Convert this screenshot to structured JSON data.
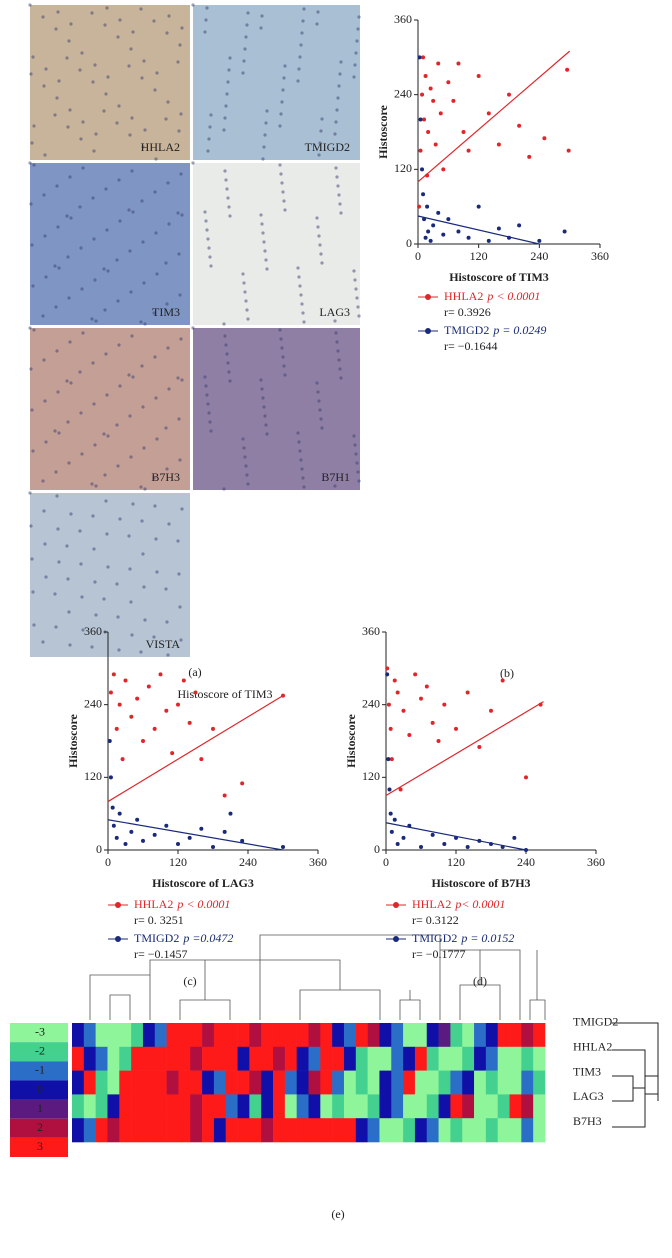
{
  "panel_a": {
    "label": "(a)",
    "images": [
      {
        "label": "HHLA2",
        "color": "#c8b49a"
      },
      {
        "label": "TMIGD2",
        "color": "#a9bfd3"
      },
      {
        "label": "TIM3",
        "color": "#7f95c4"
      },
      {
        "label": "LAG3",
        "color": "#e9ebe9"
      },
      {
        "label": "B7H3",
        "color": "#c49f96"
      },
      {
        "label": "B7H1",
        "color": "#8f7fa5"
      },
      {
        "label": "VISTA",
        "color": "#b6c4d4"
      }
    ]
  },
  "stray_text": "Histoscore of TIM3",
  "chart_data": [
    {
      "type": "scatter",
      "panel_label": "(b)",
      "ylabel": "Histoscore",
      "xlabel": "Histoscore of TIM3",
      "xlim": [
        0,
        360
      ],
      "ylim": [
        0,
        360
      ],
      "xticks": [
        0,
        120,
        240,
        360
      ],
      "yticks": [
        0,
        120,
        240,
        360
      ],
      "series": [
        {
          "name": "HHLA2",
          "color": "#e0262b",
          "p_label": "p < 0.0001",
          "r_label": "r= 0.3926",
          "x": [
            2,
            5,
            8,
            10,
            12,
            15,
            18,
            20,
            25,
            30,
            35,
            40,
            45,
            50,
            60,
            70,
            80,
            90,
            100,
            120,
            140,
            160,
            180,
            200,
            220,
            250,
            295,
            298
          ],
          "y": [
            60,
            150,
            240,
            300,
            200,
            270,
            110,
            180,
            250,
            230,
            160,
            290,
            210,
            120,
            260,
            230,
            290,
            180,
            150,
            270,
            210,
            160,
            240,
            190,
            140,
            170,
            280,
            150
          ],
          "trend": {
            "x": [
              0,
              300
            ],
            "y": [
              100,
              310
            ]
          }
        },
        {
          "name": "TMIGD2",
          "color": "#1a2a7a",
          "p_label": "p = 0.0249",
          "r_label": "r= −0.1644",
          "x": [
            3,
            5,
            8,
            10,
            12,
            15,
            18,
            20,
            25,
            30,
            40,
            50,
            60,
            80,
            100,
            120,
            140,
            160,
            180,
            200,
            240,
            290
          ],
          "y": [
            300,
            200,
            120,
            80,
            40,
            10,
            60,
            20,
            5,
            30,
            50,
            15,
            40,
            20,
            10,
            60,
            5,
            25,
            10,
            30,
            5,
            20
          ],
          "trend": {
            "x": [
              0,
              240
            ],
            "y": [
              45,
              0
            ]
          }
        }
      ]
    },
    {
      "type": "scatter",
      "panel_label": "(c)",
      "ylabel": "Histoscore",
      "xlabel": "Histoscore of LAG3",
      "xlim": [
        0,
        360
      ],
      "ylim": [
        0,
        360
      ],
      "xticks": [
        0,
        120,
        240,
        360
      ],
      "yticks": [
        0,
        120,
        240,
        360
      ],
      "series": [
        {
          "name": "HHLA2",
          "color": "#e0262b",
          "p_label": "p < 0.0001",
          "r_label": "r= 0. 3251",
          "x": [
            5,
            10,
            15,
            20,
            25,
            30,
            40,
            50,
            60,
            70,
            80,
            90,
            100,
            110,
            120,
            130,
            140,
            150,
            160,
            180,
            200,
            230,
            300
          ],
          "y": [
            260,
            290,
            200,
            240,
            150,
            280,
            220,
            250,
            180,
            270,
            200,
            290,
            230,
            160,
            240,
            280,
            210,
            260,
            150,
            200,
            90,
            110,
            255
          ],
          "trend": {
            "x": [
              0,
              300
            ],
            "y": [
              80,
              255
            ]
          }
        },
        {
          "name": "TMIGD2",
          "color": "#1a2a7a",
          "p_label": "p =0.0472",
          "r_label": "r= −0.1457",
          "x": [
            3,
            5,
            8,
            10,
            15,
            20,
            30,
            40,
            50,
            60,
            80,
            100,
            120,
            140,
            160,
            180,
            200,
            210,
            230,
            300
          ],
          "y": [
            180,
            120,
            70,
            40,
            20,
            60,
            10,
            30,
            50,
            15,
            25,
            40,
            10,
            20,
            35,
            5,
            30,
            60,
            15,
            5
          ],
          "trend": {
            "x": [
              0,
              300
            ],
            "y": [
              50,
              0
            ]
          }
        }
      ]
    },
    {
      "type": "scatter",
      "panel_label": "(d)",
      "ylabel": "Histoscore",
      "xlabel": "Histoscore of B7H3",
      "xlim": [
        0,
        360
      ],
      "ylim": [
        0,
        360
      ],
      "xticks": [
        0,
        120,
        240,
        360
      ],
      "yticks": [
        0,
        120,
        240,
        360
      ],
      "series": [
        {
          "name": "HHLA2",
          "color": "#e0262b",
          "p_label": "p< 0.0001",
          "r_label": "r= 0.3122",
          "x": [
            2,
            5,
            8,
            10,
            15,
            20,
            25,
            30,
            40,
            50,
            60,
            70,
            80,
            90,
            100,
            120,
            140,
            160,
            180,
            200,
            240,
            265
          ],
          "y": [
            300,
            240,
            200,
            150,
            280,
            260,
            100,
            230,
            190,
            290,
            250,
            270,
            210,
            180,
            240,
            200,
            260,
            170,
            230,
            280,
            120,
            240
          ],
          "trend": {
            "x": [
              0,
              270
            ],
            "y": [
              90,
              245
            ]
          }
        },
        {
          "name": "TMIGD2",
          "color": "#1a2a7a",
          "p_label": "p = 0.0152",
          "r_label": "r= −0.1777",
          "x": [
            2,
            4,
            6,
            8,
            10,
            15,
            20,
            30,
            40,
            60,
            80,
            100,
            120,
            140,
            160,
            180,
            200,
            220,
            240
          ],
          "y": [
            290,
            150,
            100,
            60,
            30,
            50,
            10,
            20,
            40,
            5,
            25,
            10,
            20,
            5,
            15,
            10,
            5,
            20,
            0
          ],
          "trend": {
            "x": [
              0,
              240
            ],
            "y": [
              45,
              0
            ]
          }
        }
      ]
    },
    {
      "type": "heatmap",
      "panel_label": "(e)",
      "rows": [
        "TMIGD2",
        "HHLA2",
        "TIM3",
        "LAG3",
        "B7H3"
      ],
      "colorscale": [
        {
          "value": -3,
          "color": "#8ef59a"
        },
        {
          "value": -2,
          "color": "#44d08e"
        },
        {
          "value": -1,
          "color": "#2a6ec8"
        },
        {
          "value": 0,
          "color": "#1010a8"
        },
        {
          "value": 1,
          "color": "#5a1a80"
        },
        {
          "value": 2,
          "color": "#b01040"
        },
        {
          "value": 3,
          "color": "#ff1a1a"
        }
      ],
      "values": [
        [
          0,
          -1,
          -3,
          -3,
          -3,
          -2,
          0,
          -1,
          3,
          3,
          3,
          2,
          3,
          3,
          3,
          2,
          3,
          3,
          3,
          3,
          2,
          3,
          0,
          -1,
          3,
          2,
          0,
          -1,
          -3,
          -3,
          0,
          1,
          -2,
          -3,
          -1,
          0,
          3,
          3,
          2,
          3
        ],
        [
          3,
          0,
          -1,
          -3,
          -2,
          3,
          3,
          3,
          3,
          3,
          2,
          3,
          3,
          3,
          0,
          3,
          3,
          2,
          3,
          0,
          -1,
          3,
          3,
          0,
          -2,
          -3,
          -3,
          -1,
          0,
          3,
          -2,
          -3,
          -3,
          -2,
          0,
          -1,
          -3,
          -3,
          -2,
          -3
        ],
        [
          0,
          3,
          -2,
          -3,
          3,
          3,
          3,
          3,
          2,
          3,
          3,
          0,
          -1,
          3,
          3,
          2,
          0,
          3,
          -1,
          0,
          2,
          3,
          -1,
          -3,
          -2,
          -3,
          0,
          -1,
          3,
          -3,
          -3,
          -2,
          -1,
          0,
          -3,
          -2,
          -3,
          -3,
          -1,
          -2
        ],
        [
          -2,
          -3,
          -2,
          0,
          3,
          3,
          3,
          3,
          3,
          3,
          2,
          3,
          3,
          -1,
          0,
          -2,
          0,
          3,
          -3,
          -1,
          0,
          -3,
          -2,
          -3,
          -3,
          -2,
          0,
          -1,
          -3,
          -3,
          -2,
          0,
          3,
          2,
          -3,
          -3,
          -2,
          3,
          2,
          -3
        ],
        [
          0,
          -1,
          3,
          2,
          3,
          3,
          3,
          3,
          3,
          3,
          2,
          3,
          0,
          3,
          3,
          3,
          2,
          3,
          3,
          3,
          3,
          3,
          3,
          3,
          0,
          -1,
          -3,
          -3,
          -2,
          0,
          -1,
          -3,
          -2,
          -3,
          -3,
          -2,
          -3,
          -3,
          -1,
          -3
        ]
      ]
    }
  ]
}
